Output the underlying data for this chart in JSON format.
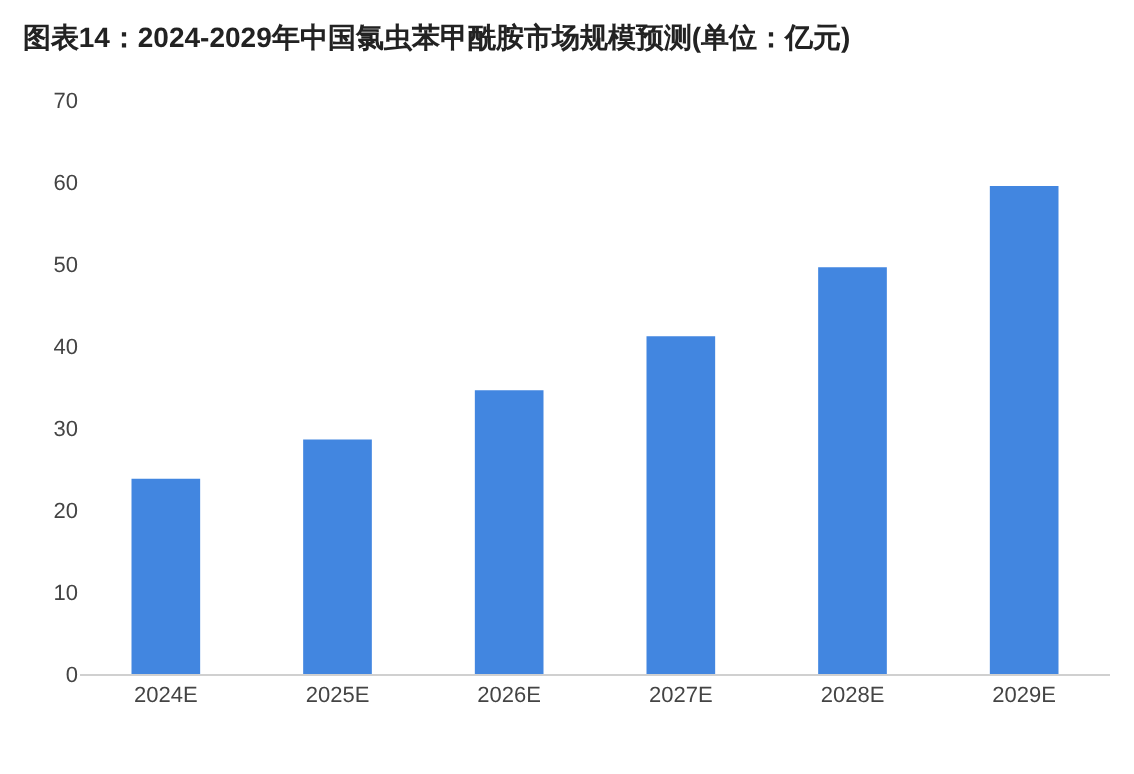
{
  "chart_data": {
    "type": "bar",
    "title": "图表14：2024-2029年中国氯虫苯甲酰胺市场规模预测(单位：亿元)",
    "categories": [
      "2024E",
      "2025E",
      "2026E",
      "2027E",
      "2028E",
      "2029E"
    ],
    "values": [
      23.8,
      28.6,
      34.6,
      41.2,
      49.6,
      59.5
    ],
    "color": "#4286e0",
    "ylim": [
      0,
      70
    ],
    "yticks": [
      0,
      10,
      20,
      30,
      40,
      50,
      60,
      70
    ],
    "grid": false
  }
}
